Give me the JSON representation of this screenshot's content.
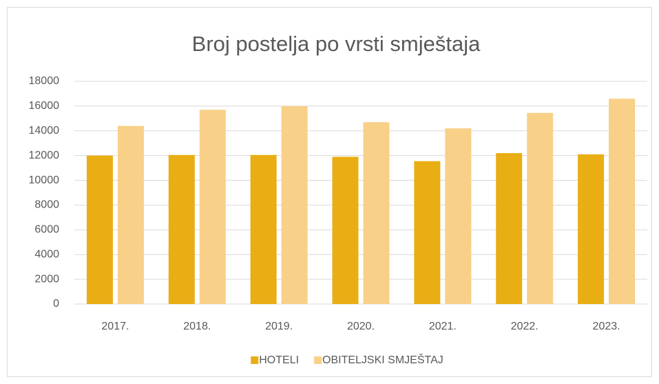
{
  "chart_data": {
    "type": "bar",
    "title": "Broj postelja po vrsti smještaja",
    "categories": [
      "2017.",
      "2018.",
      "2019.",
      "2020.",
      "2021.",
      "2022.",
      "2023."
    ],
    "series": [
      {
        "name": "HOTELI",
        "color": "#e9ae14",
        "values": [
          12000,
          12050,
          12050,
          11900,
          11550,
          12200,
          12100
        ]
      },
      {
        "name": "OBITELJSKI SMJEŠTAJ",
        "color": "#f8d088",
        "values": [
          14400,
          15700,
          16000,
          14700,
          14200,
          15450,
          16600
        ]
      }
    ],
    "ylim": [
      0,
      18000
    ],
    "yticks": [
      0,
      2000,
      4000,
      6000,
      8000,
      10000,
      12000,
      14000,
      16000,
      18000
    ],
    "grid": true,
    "legend": "bottom"
  }
}
